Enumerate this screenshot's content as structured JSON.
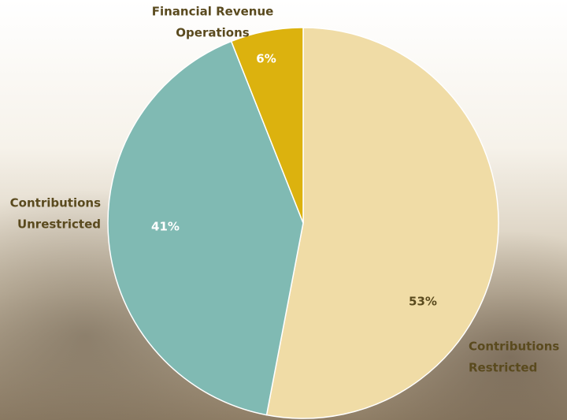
{
  "chart_data": {
    "type": "pie",
    "categories": [
      [
        "Contributions",
        "Restricted"
      ],
      [
        "Contributions",
        "Unrestricted"
      ],
      [
        "Financial Revenue",
        "Operations"
      ]
    ],
    "values": [
      53,
      41,
      6
    ],
    "value_labels": [
      "53%",
      "41%",
      "6%"
    ],
    "colors": [
      "#f0dca6",
      "#80bab3",
      "#dcb20e"
    ]
  }
}
